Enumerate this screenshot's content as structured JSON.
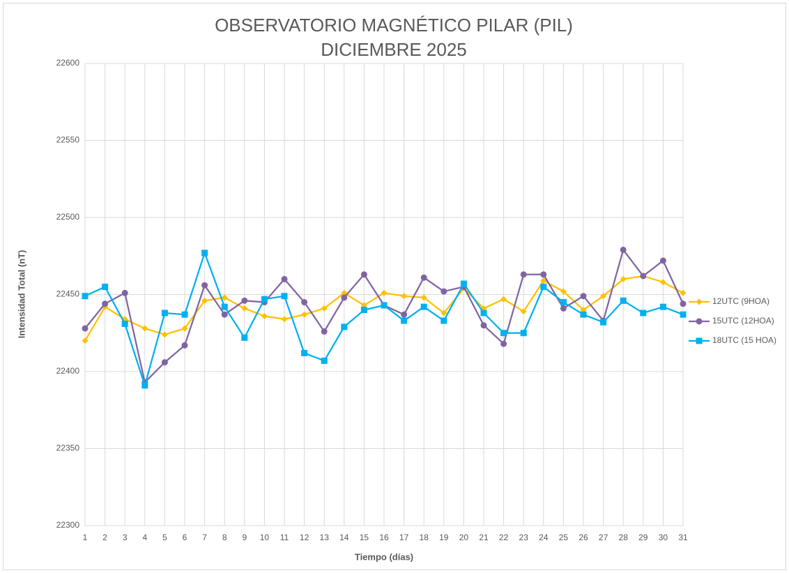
{
  "chart_data": {
    "type": "line",
    "title": "OBSERVATORIO MAGNÉTICO PILAR (PIL)",
    "subtitle": "DICIEMBRE 2025",
    "x_label": "Tiempo (días)",
    "y_label": "Intensidad Total (nT)",
    "categories": [
      "1",
      "2",
      "3",
      "4",
      "5",
      "6",
      "7",
      "8",
      "9",
      "10",
      "11",
      "12",
      "13",
      "14",
      "15",
      "16",
      "17",
      "18",
      "19",
      "20",
      "21",
      "22",
      "23",
      "24",
      "25",
      "26",
      "27",
      "28",
      "29",
      "30",
      "31"
    ],
    "ylim": [
      22300,
      22600
    ],
    "yticks": [
      22300,
      22350,
      22400,
      22450,
      22500,
      22550,
      22600
    ],
    "grid": true,
    "legend": "right",
    "series": [
      {
        "name": "12UTC (9HOA)",
        "color": "#FFC000",
        "marker": "diamond",
        "values": [
          22420,
          22442,
          22434,
          22428,
          22424,
          22428,
          22446,
          22448,
          22441,
          22436,
          22434,
          22437,
          22441,
          22451,
          22443,
          22451,
          22449,
          22448,
          22438,
          22454,
          22441,
          22447,
          22439,
          22459,
          22452,
          22440,
          22449,
          22460,
          22462,
          22458,
          22451
        ]
      },
      {
        "name": "15UTC (12HOA)",
        "color": "#8064A2",
        "marker": "circle",
        "values": [
          22428,
          22444,
          22451,
          22393,
          22406,
          22417,
          22456,
          22437,
          22446,
          22445,
          22460,
          22445,
          22426,
          22448,
          22463,
          22443,
          22437,
          22461,
          22452,
          22455,
          22430,
          22418,
          22463,
          22463,
          22441,
          22449,
          22433,
          22479,
          22462,
          22472,
          22444
        ]
      },
      {
        "name": "18UTC (15 HOA)",
        "color": "#00B0F0",
        "marker": "square",
        "values": [
          22449,
          22455,
          22431,
          22391,
          22438,
          22437,
          22477,
          22442,
          22422,
          22447,
          22449,
          22412,
          22407,
          22429,
          22440,
          22443,
          22433,
          22442,
          22433,
          22457,
          22438,
          22425,
          22425,
          22455,
          22445,
          22437,
          22432,
          22446,
          22438,
          22442,
          22437
        ]
      }
    ]
  }
}
